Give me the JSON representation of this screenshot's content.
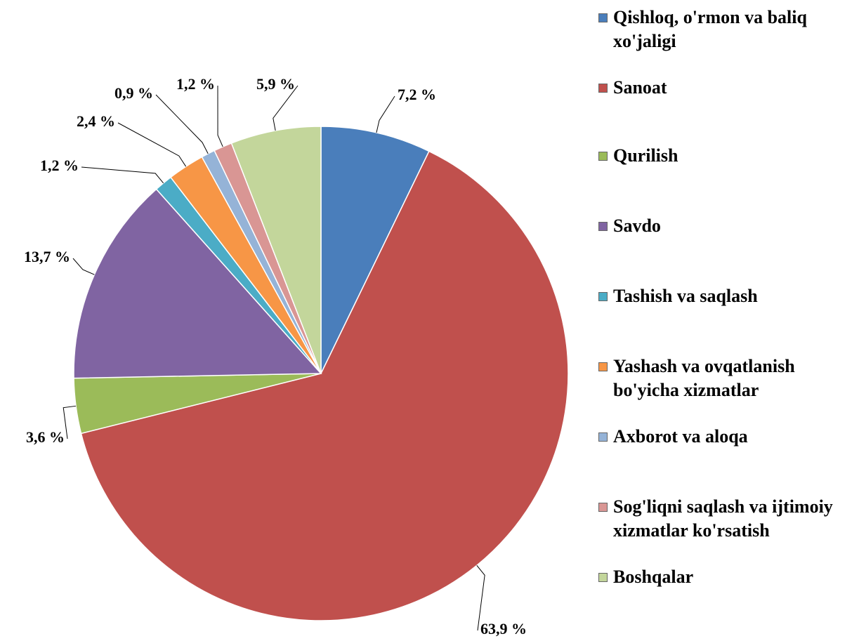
{
  "chart_data": {
    "type": "pie",
    "categories": [
      "Qishloq, o'rmon va baliq xo'jaligi",
      "Sanoat",
      "Qurilish",
      "Savdo",
      "Tashish va saqlash",
      "Yashash va ovqatlanish bo'yicha xizmatlar",
      "Axborot va aloqa",
      "Sog'liqni saqlash va ijtimoiy xizmatlar ko'rsatish",
      "Boshqalar"
    ],
    "values": [
      7.2,
      63.9,
      3.6,
      13.7,
      1.2,
      2.4,
      0.9,
      1.2,
      5.9
    ],
    "value_labels": [
      "7,2 %",
      "63,9 %",
      "3,6 %",
      "13,7 %",
      "1,2 %",
      "2,4 %",
      "0,9 %",
      "1,2 %",
      "5,9 %"
    ],
    "colors": [
      "#4a7ebb",
      "#c0504d",
      "#9bbb59",
      "#8064a2",
      "#4bacc6",
      "#f79646",
      "#95b3d7",
      "#d99694",
      "#c3d69b"
    ],
    "legend": "right"
  }
}
